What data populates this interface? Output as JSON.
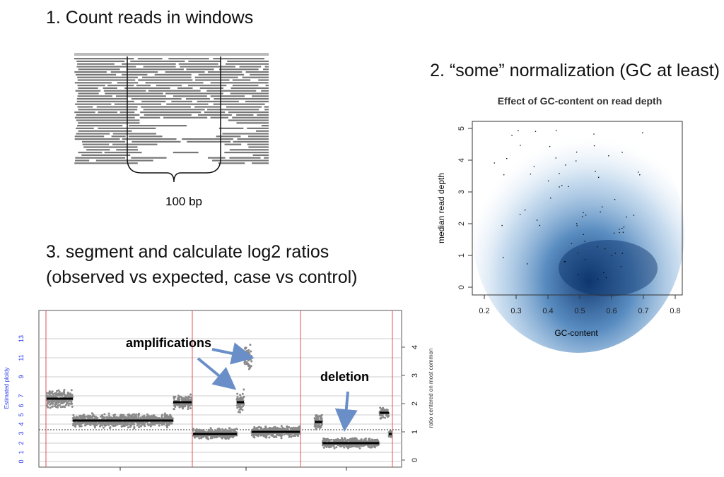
{
  "steps": [
    "1. Count reads in windows",
    "2. “some” normalization (GC at least)",
    "3. segment and calculate log2 ratios",
    "(observed vs expected, case vs control)"
  ],
  "window_label": "100 bp",
  "gc_plot": {
    "title": "Effect of GC-content on read depth",
    "x_label": "GC-content",
    "y_label": "median read depth",
    "xticks": [
      0.2,
      0.3,
      0.4,
      0.5,
      0.6,
      0.7,
      0.8
    ],
    "yticks": [
      0,
      1,
      2,
      3,
      4,
      5
    ]
  },
  "cnv_plot": {
    "y_label": "Estimated ploidy",
    "y2_label": "ratio centered on most common",
    "yticks": [
      0,
      1,
      2,
      3,
      4,
      5,
      6,
      7,
      9,
      11,
      13
    ],
    "y2ticks": [
      0,
      1,
      2,
      3,
      4
    ],
    "annotations": [
      "amplifications",
      "deletion"
    ]
  }
}
